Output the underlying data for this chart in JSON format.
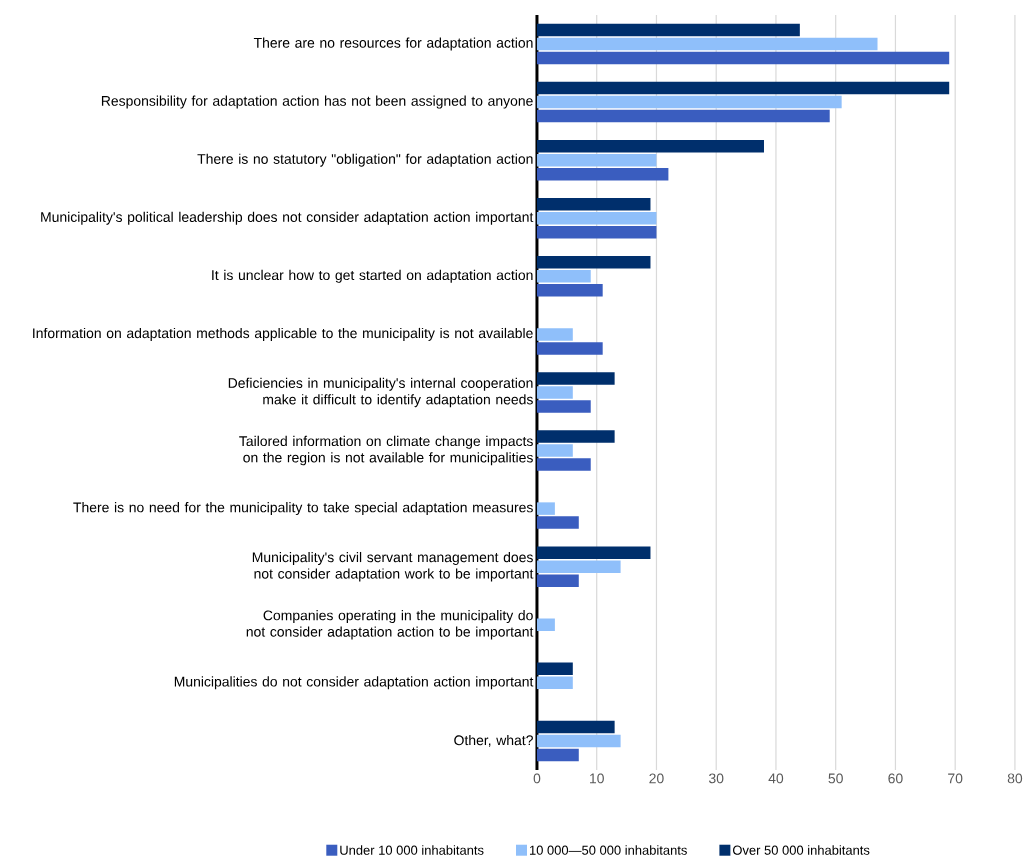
{
  "chart_data": {
    "type": "bar",
    "orientation": "horizontal",
    "categories": [
      "There are no resources for adaptation action",
      "Responsibility for adaptation action has not been assigned to anyone",
      "There is no statutory \"obligation\" for adaptation action",
      "Municipality's political leadership does not consider adaptation action important",
      "It is unclear how to get started on adaptation action",
      "Information on adaptation methods applicable to the municipality is not available",
      "Deficiencies in municipality's internal cooperation make it difficult to identify adaptation needs",
      "Tailored information on climate change impacts on the region is not available for municipalities",
      "There is no need for the municipality to take special adaptation measures",
      "Municipality's civil servant management does not consider adaptation work to be important",
      "Companies operating in the municipality do not consider adaptation action to be important",
      "Municipalities do not consider adaptation action important",
      "Other, what?"
    ],
    "series": [
      {
        "name": "Under 10 000 inhabitants",
        "color": "#3a5dbf",
        "values": [
          69,
          49,
          22,
          20,
          11,
          11,
          9,
          9,
          7,
          7,
          0,
          0,
          7
        ]
      },
      {
        "name": "10 000—50 000 inhabitants",
        "color": "#8fbffa",
        "values": [
          57,
          51,
          20,
          20,
          9,
          6,
          6,
          6,
          3,
          14,
          3,
          6,
          14
        ]
      },
      {
        "name": "Over 50 000 inhabitants",
        "color": "#002f6c",
        "values": [
          44,
          69,
          38,
          19,
          19,
          0,
          13,
          13,
          0,
          19,
          0,
          6,
          13
        ]
      }
    ],
    "xlim": [
      0,
      80
    ],
    "xticks": [
      0,
      10,
      20,
      30,
      40,
      50,
      60,
      70,
      80
    ],
    "grid": "x",
    "legend": "bottom"
  }
}
